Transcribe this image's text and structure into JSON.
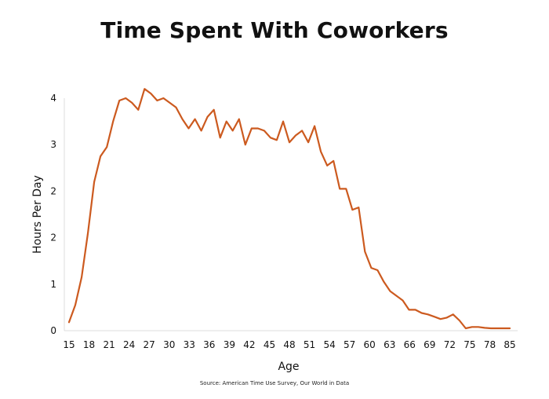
{
  "title": "Time Spent With Coworkers",
  "source": "Source: American Time Use Survey, Our World in Data",
  "chart_data": {
    "type": "line",
    "title": "Time Spent With Coworkers",
    "xlabel": "Age",
    "ylabel": "Hours Per Day",
    "xlim": [
      15,
      85
    ],
    "ylim": [
      0,
      5
    ],
    "grid": false,
    "color": "#cc5a1f",
    "x_ticks": [
      "15",
      "18",
      "21",
      "24",
      "27",
      "30",
      "33",
      "36",
      "39",
      "42",
      "45",
      "48",
      "51",
      "54",
      "57",
      "60",
      "63",
      "66",
      "69",
      "72",
      "75",
      "78",
      "85"
    ],
    "y_ticks": [
      "0",
      "1",
      "2",
      "2",
      "3",
      "4"
    ],
    "x": [
      15,
      16,
      17,
      18,
      19,
      20,
      21,
      22,
      23,
      24,
      25,
      26,
      27,
      28,
      29,
      30,
      31,
      32,
      33,
      34,
      35,
      36,
      37,
      38,
      39,
      40,
      41,
      42,
      43,
      44,
      45,
      46,
      47,
      48,
      49,
      50,
      51,
      52,
      53,
      54,
      55,
      56,
      57,
      58,
      59,
      60,
      61,
      62,
      63,
      64,
      65,
      66,
      67,
      68,
      69,
      70,
      71,
      72,
      73,
      74,
      75,
      76,
      77,
      78,
      79,
      80,
      81,
      82,
      83,
      84,
      85
    ],
    "values": [
      0.18,
      0.55,
      1.15,
      2.1,
      3.2,
      3.75,
      3.95,
      4.5,
      4.95,
      5.0,
      4.9,
      4.75,
      5.2,
      5.1,
      4.95,
      5.0,
      4.9,
      4.8,
      4.55,
      4.35,
      4.55,
      4.3,
      4.6,
      4.75,
      4.15,
      4.5,
      4.3,
      4.55,
      4.0,
      4.35,
      4.35,
      4.3,
      4.15,
      4.1,
      4.5,
      4.05,
      4.2,
      4.3,
      4.05,
      4.4,
      3.85,
      3.55,
      3.65,
      3.05,
      3.05,
      2.6,
      2.65,
      1.7,
      1.35,
      1.3,
      1.05,
      0.85,
      0.75,
      0.65,
      0.45,
      0.45,
      0.38,
      0.35,
      0.3,
      0.25,
      0.28,
      0.35,
      0.22,
      0.05,
      0.08,
      0.08,
      0.06,
      0.05,
      0.05,
      0.05,
      0.05
    ]
  }
}
